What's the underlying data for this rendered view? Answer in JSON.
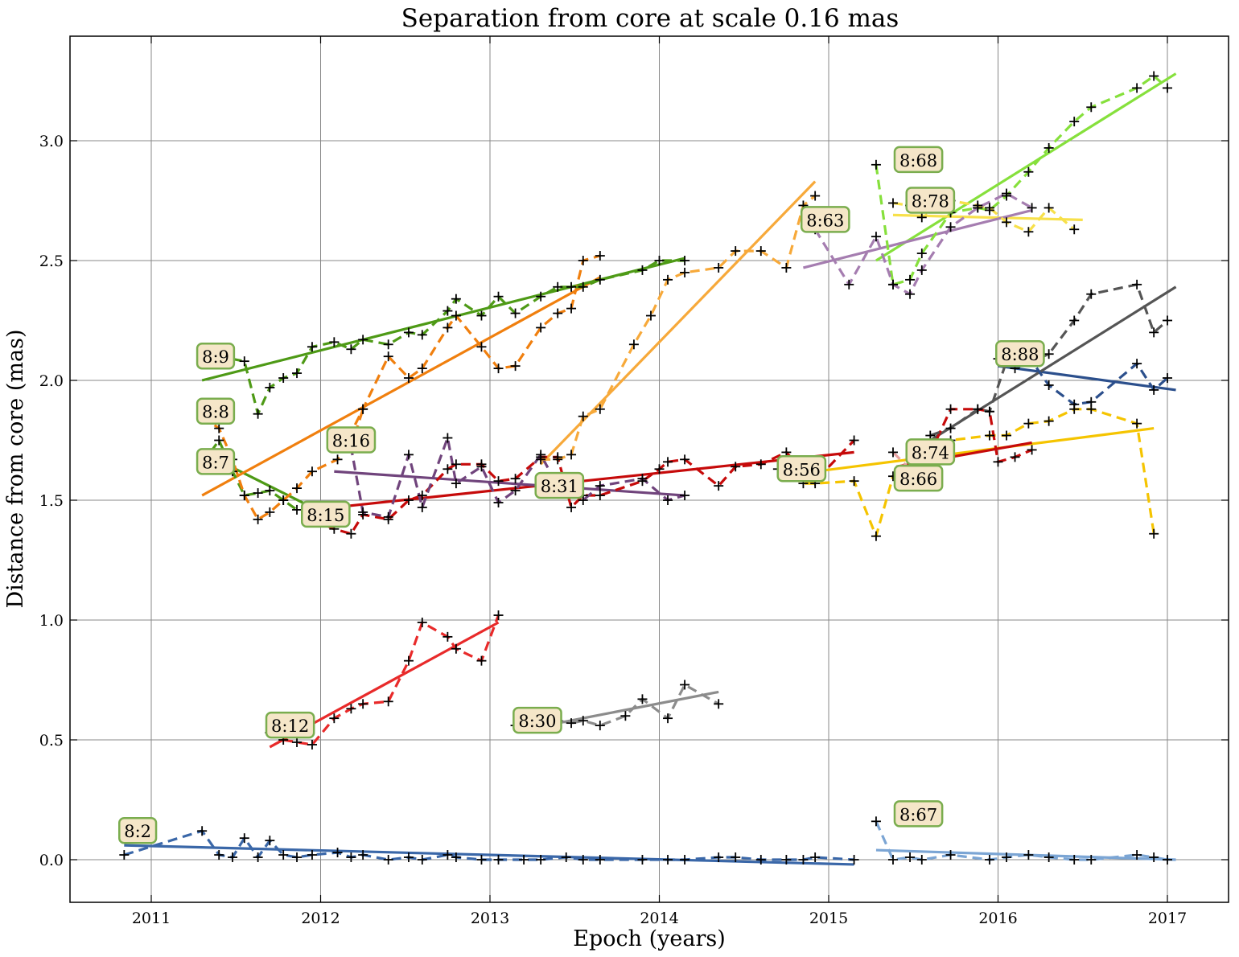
{
  "chart_data": {
    "type": "line",
    "title": "Separation from core at scale 0.16 mas",
    "xlabel": "Epoch (years)",
    "ylabel": "Distance from core (mas)",
    "xlim": [
      2010.52,
      2017.35
    ],
    "ylim": [
      -0.18,
      3.44
    ],
    "x_ticks": [
      2011,
      2012,
      2013,
      2014,
      2015,
      2016,
      2017
    ],
    "x_tick_labels": [
      "2011",
      "2012",
      "2013",
      "2014",
      "2015",
      "2016",
      "2017"
    ],
    "y_ticks": [
      0.0,
      0.5,
      1.0,
      1.5,
      2.0,
      2.5,
      3.0
    ],
    "y_tick_labels": [
      "0.0",
      "0.5",
      "1.0",
      "1.5",
      "2.0",
      "2.5",
      "3.0"
    ],
    "grid": true,
    "components": [
      {
        "label": "8:2",
        "color": "#3a67a8",
        "x": [
          2010.84,
          2011.3,
          2011.4,
          2011.48,
          2011.55,
          2011.63,
          2011.7,
          2011.78,
          2011.86,
          2011.95,
          2012.1,
          2012.18,
          2012.25,
          2012.4,
          2012.52,
          2012.6,
          2012.75,
          2012.8,
          2012.95,
          2013.05,
          2013.2,
          2013.3,
          2013.45,
          2013.55,
          2013.65,
          2013.9,
          2014.05,
          2014.15,
          2014.35,
          2014.45,
          2014.6,
          2014.75,
          2014.85,
          2014.92,
          2015.15
        ],
        "y": [
          0.02,
          0.12,
          0.02,
          0.01,
          0.09,
          0.01,
          0.08,
          0.02,
          0.01,
          0.02,
          0.03,
          0.01,
          0.02,
          0.0,
          0.01,
          0.0,
          0.02,
          0.01,
          0.0,
          0.0,
          0.0,
          0.0,
          0.01,
          0.0,
          0.0,
          0.0,
          0.0,
          0.0,
          0.01,
          0.01,
          0.0,
          0.0,
          0.0,
          0.01,
          0.0
        ],
        "fit": [
          [
            2010.84,
            0.06
          ],
          [
            2015.15,
            -0.02
          ]
        ]
      },
      {
        "label": "8:7",
        "color": "#4e9a16",
        "x": [
          2011.3,
          2011.4,
          2011.48,
          2011.55,
          2011.63,
          2011.7,
          2011.78,
          2011.86
        ],
        "y": [
          1.65,
          1.75,
          1.62,
          1.52,
          1.53,
          1.54,
          1.5,
          1.46
        ],
        "fit": [
          [
            2011.3,
            1.7
          ],
          [
            2011.95,
            1.47
          ]
        ]
      },
      {
        "label": "8:8",
        "color": "#f07f0e",
        "x": [
          2011.3,
          2011.4,
          2011.48,
          2011.55,
          2011.63,
          2011.7,
          2011.78,
          2011.86,
          2011.95,
          2012.1,
          2012.25,
          2012.4,
          2012.52,
          2012.6,
          2012.75,
          2012.8,
          2012.95,
          2013.05,
          2013.15,
          2013.3,
          2013.4,
          2013.48,
          2013.55,
          2013.65
        ],
        "y": [
          1.85,
          1.8,
          1.67,
          1.52,
          1.42,
          1.45,
          1.5,
          1.55,
          1.62,
          1.67,
          1.88,
          2.1,
          2.01,
          2.05,
          2.22,
          2.27,
          2.14,
          2.05,
          2.06,
          2.22,
          2.28,
          2.3,
          2.5,
          2.52
        ],
        "fit": [
          [
            2011.3,
            1.52
          ],
          [
            2013.65,
            2.43
          ]
        ]
      },
      {
        "label": "8:9",
        "color": "#4e9a16",
        "x": [
          2011.3,
          2011.4,
          2011.55,
          2011.63,
          2011.7,
          2011.78,
          2011.86,
          2011.95,
          2012.08,
          2012.18,
          2012.25,
          2012.4,
          2012.52,
          2012.6,
          2012.75,
          2012.8,
          2012.95,
          2013.05,
          2013.15,
          2013.3,
          2013.4,
          2013.48,
          2013.55,
          2013.65,
          2013.9,
          2014.0,
          2014.15
        ],
        "y": [
          2.09,
          2.1,
          2.08,
          1.86,
          1.97,
          2.01,
          2.03,
          2.14,
          2.16,
          2.13,
          2.17,
          2.15,
          2.2,
          2.19,
          2.29,
          2.34,
          2.27,
          2.35,
          2.28,
          2.35,
          2.39,
          2.39,
          2.39,
          2.42,
          2.46,
          2.5,
          2.5
        ],
        "fit": [
          [
            2011.3,
            2.0
          ],
          [
            2014.15,
            2.51
          ]
        ]
      },
      {
        "label": "8:12",
        "color": "#e82a2a",
        "x": [
          2011.7,
          2011.78,
          2011.86,
          2011.95,
          2012.08,
          2012.18,
          2012.25,
          2012.4,
          2012.52,
          2012.6,
          2012.75,
          2012.8,
          2012.95,
          2013.05
        ],
        "y": [
          0.53,
          0.5,
          0.49,
          0.48,
          0.59,
          0.63,
          0.65,
          0.66,
          0.83,
          0.99,
          0.93,
          0.88,
          0.83,
          1.02
        ],
        "fit": [
          [
            2011.7,
            0.47
          ],
          [
            2013.05,
            0.99
          ]
        ]
      },
      {
        "label": "8:15",
        "color": "#c60a0a",
        "x": [
          2011.95,
          2012.08,
          2012.18,
          2012.25,
          2012.4,
          2012.52,
          2012.6,
          2012.75,
          2012.8,
          2012.95,
          2013.05,
          2013.15,
          2013.3,
          2013.4,
          2013.48,
          2013.55,
          2013.65,
          2013.9,
          2014.0,
          2014.05,
          2014.15,
          2014.35,
          2014.45,
          2014.6,
          2014.75,
          2014.85,
          2014.92,
          2015.15
        ],
        "y": [
          1.42,
          1.38,
          1.36,
          1.44,
          1.42,
          1.5,
          1.52,
          1.63,
          1.65,
          1.65,
          1.58,
          1.59,
          1.68,
          1.68,
          1.47,
          1.52,
          1.52,
          1.58,
          1.63,
          1.66,
          1.67,
          1.56,
          1.64,
          1.65,
          1.7,
          1.62,
          1.58,
          1.75
        ],
        "fit": [
          [
            2012.08,
            1.47
          ],
          [
            2015.15,
            1.7
          ]
        ]
      },
      {
        "label": "8:16",
        "color": "#f07f0e",
        "x": [
          2012.08,
          2012.18,
          2012.25
        ],
        "y": [
          1.73,
          1.72,
          1.88
        ],
        "fit": null
      },
      {
        "label": "8:30",
        "color": "#8c8c8c",
        "x": [
          2013.15,
          2013.3,
          2013.4,
          2013.48,
          2013.55,
          2013.65,
          2013.8,
          2013.9,
          2014.05,
          2014.15,
          2014.35
        ],
        "y": [
          0.56,
          0.61,
          0.58,
          0.57,
          0.58,
          0.56,
          0.6,
          0.67,
          0.59,
          0.73,
          0.65
        ],
        "fit": [
          [
            2013.4,
            0.57
          ],
          [
            2014.35,
            0.7
          ]
        ]
      },
      {
        "label": "8:31",
        "color": "#70447c",
        "x": [
          2012.08,
          2012.18,
          2012.25,
          2012.4,
          2012.52,
          2012.6,
          2012.75,
          2012.8,
          2012.95,
          2013.05,
          2013.15,
          2013.3,
          2013.4,
          2013.55,
          2013.65,
          2013.9,
          2014.05,
          2014.15
        ],
        "y": [
          1.73,
          1.72,
          1.45,
          1.43,
          1.69,
          1.47,
          1.76,
          1.57,
          1.64,
          1.49,
          1.54,
          1.69,
          1.56,
          1.5,
          1.56,
          1.59,
          1.5,
          1.52
        ],
        "fit": [
          [
            2012.08,
            1.62
          ],
          [
            2014.15,
            1.52
          ]
        ]
      },
      {
        "label": "8:56",
        "color": "#f5c400",
        "x": [
          2014.7,
          2014.85,
          2014.92,
          2015.15,
          2015.28,
          2015.38,
          2015.48,
          2015.58,
          2015.72,
          2015.95,
          2016.05,
          2016.18,
          2016.3,
          2016.45,
          2016.55,
          2016.82,
          2016.92
        ],
        "y": [
          1.63,
          1.57,
          1.57,
          1.58,
          1.35,
          1.6,
          1.63,
          1.67,
          1.75,
          1.77,
          1.77,
          1.82,
          1.83,
          1.88,
          1.88,
          1.82,
          1.36
        ],
        "fit": [
          [
            2014.7,
            1.6
          ],
          [
            2016.92,
            1.8
          ]
        ]
      },
      {
        "label": "8:63",
        "color": "#f7a93a",
        "x": [
          2013.3,
          2013.4,
          2013.48,
          2013.55,
          2013.65,
          2013.85,
          2013.95,
          2014.05,
          2014.15,
          2014.35,
          2014.45,
          2014.6,
          2014.75,
          2014.85,
          2014.92
        ],
        "y": [
          1.67,
          1.67,
          1.69,
          1.85,
          1.88,
          2.15,
          2.27,
          2.42,
          2.45,
          2.47,
          2.54,
          2.54,
          2.47,
          2.73,
          2.77
        ],
        "fit": [
          [
            2013.3,
            1.65
          ],
          [
            2014.92,
            2.83
          ]
        ]
      },
      {
        "label": "8:66",
        "color": "#c60a0a",
        "x": [
          2015.4,
          2015.55,
          2015.72,
          2015.88,
          2015.95,
          2016.0,
          2016.1,
          2016.2
        ],
        "y": [
          1.6,
          1.62,
          1.88,
          1.88,
          1.87,
          1.66,
          1.68,
          1.71
        ],
        "fit": [
          [
            2015.4,
            1.64
          ],
          [
            2016.2,
            1.74
          ]
        ]
      },
      {
        "label": "8:67",
        "color": "#7ba5d4",
        "x": [
          2015.28,
          2015.38,
          2015.48,
          2015.55,
          2015.72,
          2015.95,
          2016.05,
          2016.18,
          2016.3,
          2016.45,
          2016.55,
          2016.82,
          2016.92,
          2017.0
        ],
        "y": [
          0.16,
          0.0,
          0.01,
          0.0,
          0.02,
          0.0,
          0.01,
          0.02,
          0.01,
          0.0,
          0.0,
          0.02,
          0.01,
          0.0
        ],
        "fit": [
          [
            2015.28,
            0.04
          ],
          [
            2017.05,
            0.0
          ]
        ]
      },
      {
        "label": "8:68",
        "color": "#86e03c",
        "x": [
          2015.28,
          2015.38,
          2015.48,
          2015.55,
          2015.72,
          2015.88,
          2015.95,
          2016.05,
          2016.18,
          2016.3,
          2016.45,
          2016.55,
          2016.82,
          2016.92,
          2017.0
        ],
        "y": [
          2.9,
          2.4,
          2.42,
          2.53,
          2.7,
          2.72,
          2.71,
          2.77,
          2.87,
          2.97,
          3.08,
          3.14,
          3.22,
          3.27,
          3.22
        ],
        "fit": [
          [
            2015.28,
            2.5
          ],
          [
            2017.05,
            3.28
          ]
        ]
      },
      {
        "label": "8:74",
        "color": "#e8a2a2",
        "x": [
          2015.38,
          2015.48,
          2015.55
        ],
        "y": [
          1.7,
          1.63,
          1.66
        ],
        "fit": null
      },
      {
        "label": "8:78",
        "color": "#f7e04a",
        "x": [
          2015.38,
          2015.48,
          2015.55,
          2015.72,
          2015.88,
          2015.95,
          2016.05,
          2016.18,
          2016.3,
          2016.45
        ],
        "y": [
          2.74,
          2.73,
          2.68,
          2.75,
          2.73,
          2.72,
          2.66,
          2.62,
          2.72,
          2.63
        ],
        "fit": [
          [
            2015.38,
            2.69
          ],
          [
            2016.5,
            2.67
          ]
        ]
      },
      {
        "label": "8:88",
        "color": "#2b4f8c",
        "x": [
          2016.0,
          2016.1,
          2016.2,
          2016.3,
          2016.45,
          2016.55,
          2016.82,
          2016.92,
          2017.0
        ],
        "y": [
          2.09,
          2.05,
          2.08,
          1.98,
          1.9,
          1.91,
          2.07,
          1.96,
          2.01
        ],
        "fit": [
          [
            2016.0,
            2.06
          ],
          [
            2017.05,
            1.96
          ]
        ]
      },
      {
        "label": "",
        "color": "#555555",
        "x": [
          2015.6,
          2015.72,
          2015.88,
          2015.95,
          2016.05,
          2016.2,
          2016.3,
          2016.45,
          2016.55,
          2016.82,
          2016.92,
          2017.0
        ],
        "y": [
          1.77,
          1.8,
          1.88,
          1.87,
          2.08,
          2.08,
          2.11,
          2.25,
          2.36,
          2.4,
          2.2,
          2.25
        ],
        "fit": [
          [
            2015.6,
            1.75
          ],
          [
            2017.05,
            2.39
          ]
        ]
      },
      {
        "label": "",
        "color": "#a57db0",
        "x": [
          2014.92,
          2015.12,
          2015.28,
          2015.38,
          2015.48,
          2015.55,
          2015.72,
          2015.88,
          2016.05,
          2016.2
        ],
        "y": [
          2.63,
          2.4,
          2.6,
          2.4,
          2.36,
          2.46,
          2.64,
          2.72,
          2.78,
          2.72
        ],
        "fit": [
          [
            2014.85,
            2.47
          ],
          [
            2016.2,
            2.71
          ]
        ]
      }
    ],
    "annotations": [
      {
        "text": "8:2",
        "x": 2010.92,
        "y": 0.12
      },
      {
        "text": "8:7",
        "x": 2011.38,
        "y": 1.66
      },
      {
        "text": "8:8",
        "x": 2011.38,
        "y": 1.87
      },
      {
        "text": "8:9",
        "x": 2011.38,
        "y": 2.1
      },
      {
        "text": "8:12",
        "x": 2011.82,
        "y": 0.56
      },
      {
        "text": "8:15",
        "x": 2012.03,
        "y": 1.44
      },
      {
        "text": "8:16",
        "x": 2012.18,
        "y": 1.75
      },
      {
        "text": "8:30",
        "x": 2013.28,
        "y": 0.58
      },
      {
        "text": "8:31",
        "x": 2013.41,
        "y": 1.56
      },
      {
        "text": "8:56",
        "x": 2014.84,
        "y": 1.63
      },
      {
        "text": "8:63",
        "x": 2014.98,
        "y": 2.67
      },
      {
        "text": "8:66",
        "x": 2015.53,
        "y": 1.59
      },
      {
        "text": "8:67",
        "x": 2015.53,
        "y": 0.19
      },
      {
        "text": "8:68",
        "x": 2015.53,
        "y": 2.92
      },
      {
        "text": "8:74",
        "x": 2015.6,
        "y": 1.7
      },
      {
        "text": "8:78",
        "x": 2015.6,
        "y": 2.75
      },
      {
        "text": "8:88",
        "x": 2016.13,
        "y": 2.11
      }
    ]
  }
}
